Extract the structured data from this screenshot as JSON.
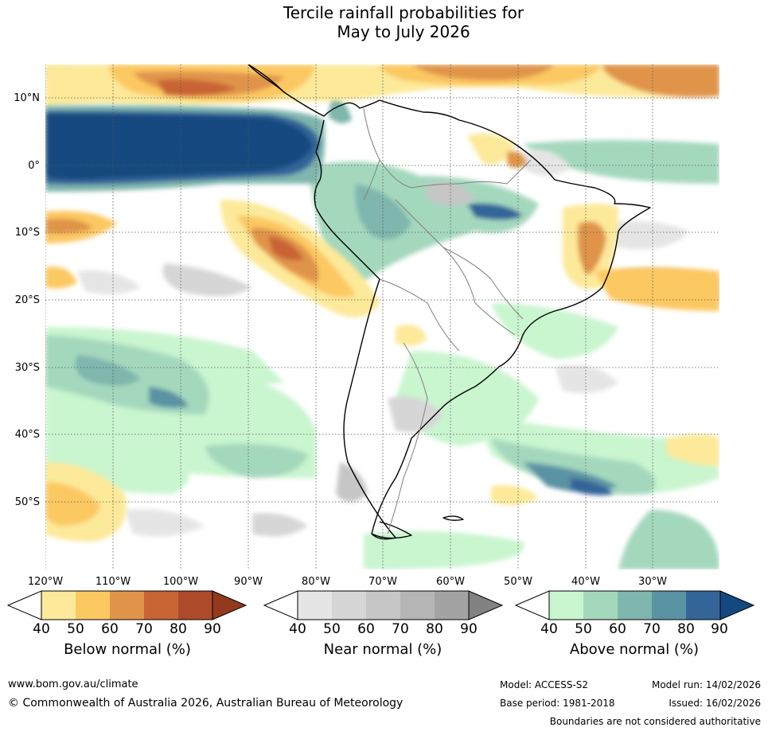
{
  "title": {
    "line1": "Tercile rainfall probabilities for",
    "line2": "May to July 2026"
  },
  "map": {
    "lat_labels": [
      "10°N",
      "0°",
      "10°S",
      "20°S",
      "30°S",
      "40°S",
      "50°S"
    ],
    "lon_labels": [
      "120°W",
      "110°W",
      "100°W",
      "90°W",
      "80°W",
      "70°W",
      "60°W",
      "50°W",
      "40°W",
      "30°W"
    ]
  },
  "colorbars": [
    {
      "label": "Below normal (%)",
      "ticks": [
        "40",
        "50",
        "60",
        "70",
        "80",
        "90"
      ],
      "colors": [
        "#fde99a",
        "#fcc862",
        "#e0944a",
        "#c96434",
        "#ad4a2a",
        "#93391e"
      ]
    },
    {
      "label": "Near normal (%)",
      "ticks": [
        "40",
        "50",
        "60",
        "70",
        "80",
        "90"
      ],
      "colors": [
        "#e5e5e5",
        "#d6d6d6",
        "#c6c6c6",
        "#b5b5b5",
        "#a3a3a3",
        "#828282"
      ]
    },
    {
      "label": "Above normal (%)",
      "ticks": [
        "40",
        "50",
        "60",
        "70",
        "80",
        "90"
      ],
      "colors": [
        "#c9f5cf",
        "#a4d8bd",
        "#7fb6ad",
        "#5a93a3",
        "#336599",
        "#14497f"
      ]
    }
  ],
  "footer": {
    "url": "www.bom.gov.au/climate",
    "copyright": "© Commonwealth of Australia 2026, Australian Bureau of Meteorology",
    "model": "Model: ACCESS-S2",
    "base_period": "Base period: 1981-2018",
    "model_run": "Model run: 14/02/2026",
    "issued": "Issued: 16/02/2026",
    "disclaimer": "Boundaries are not considered authoritative"
  }
}
